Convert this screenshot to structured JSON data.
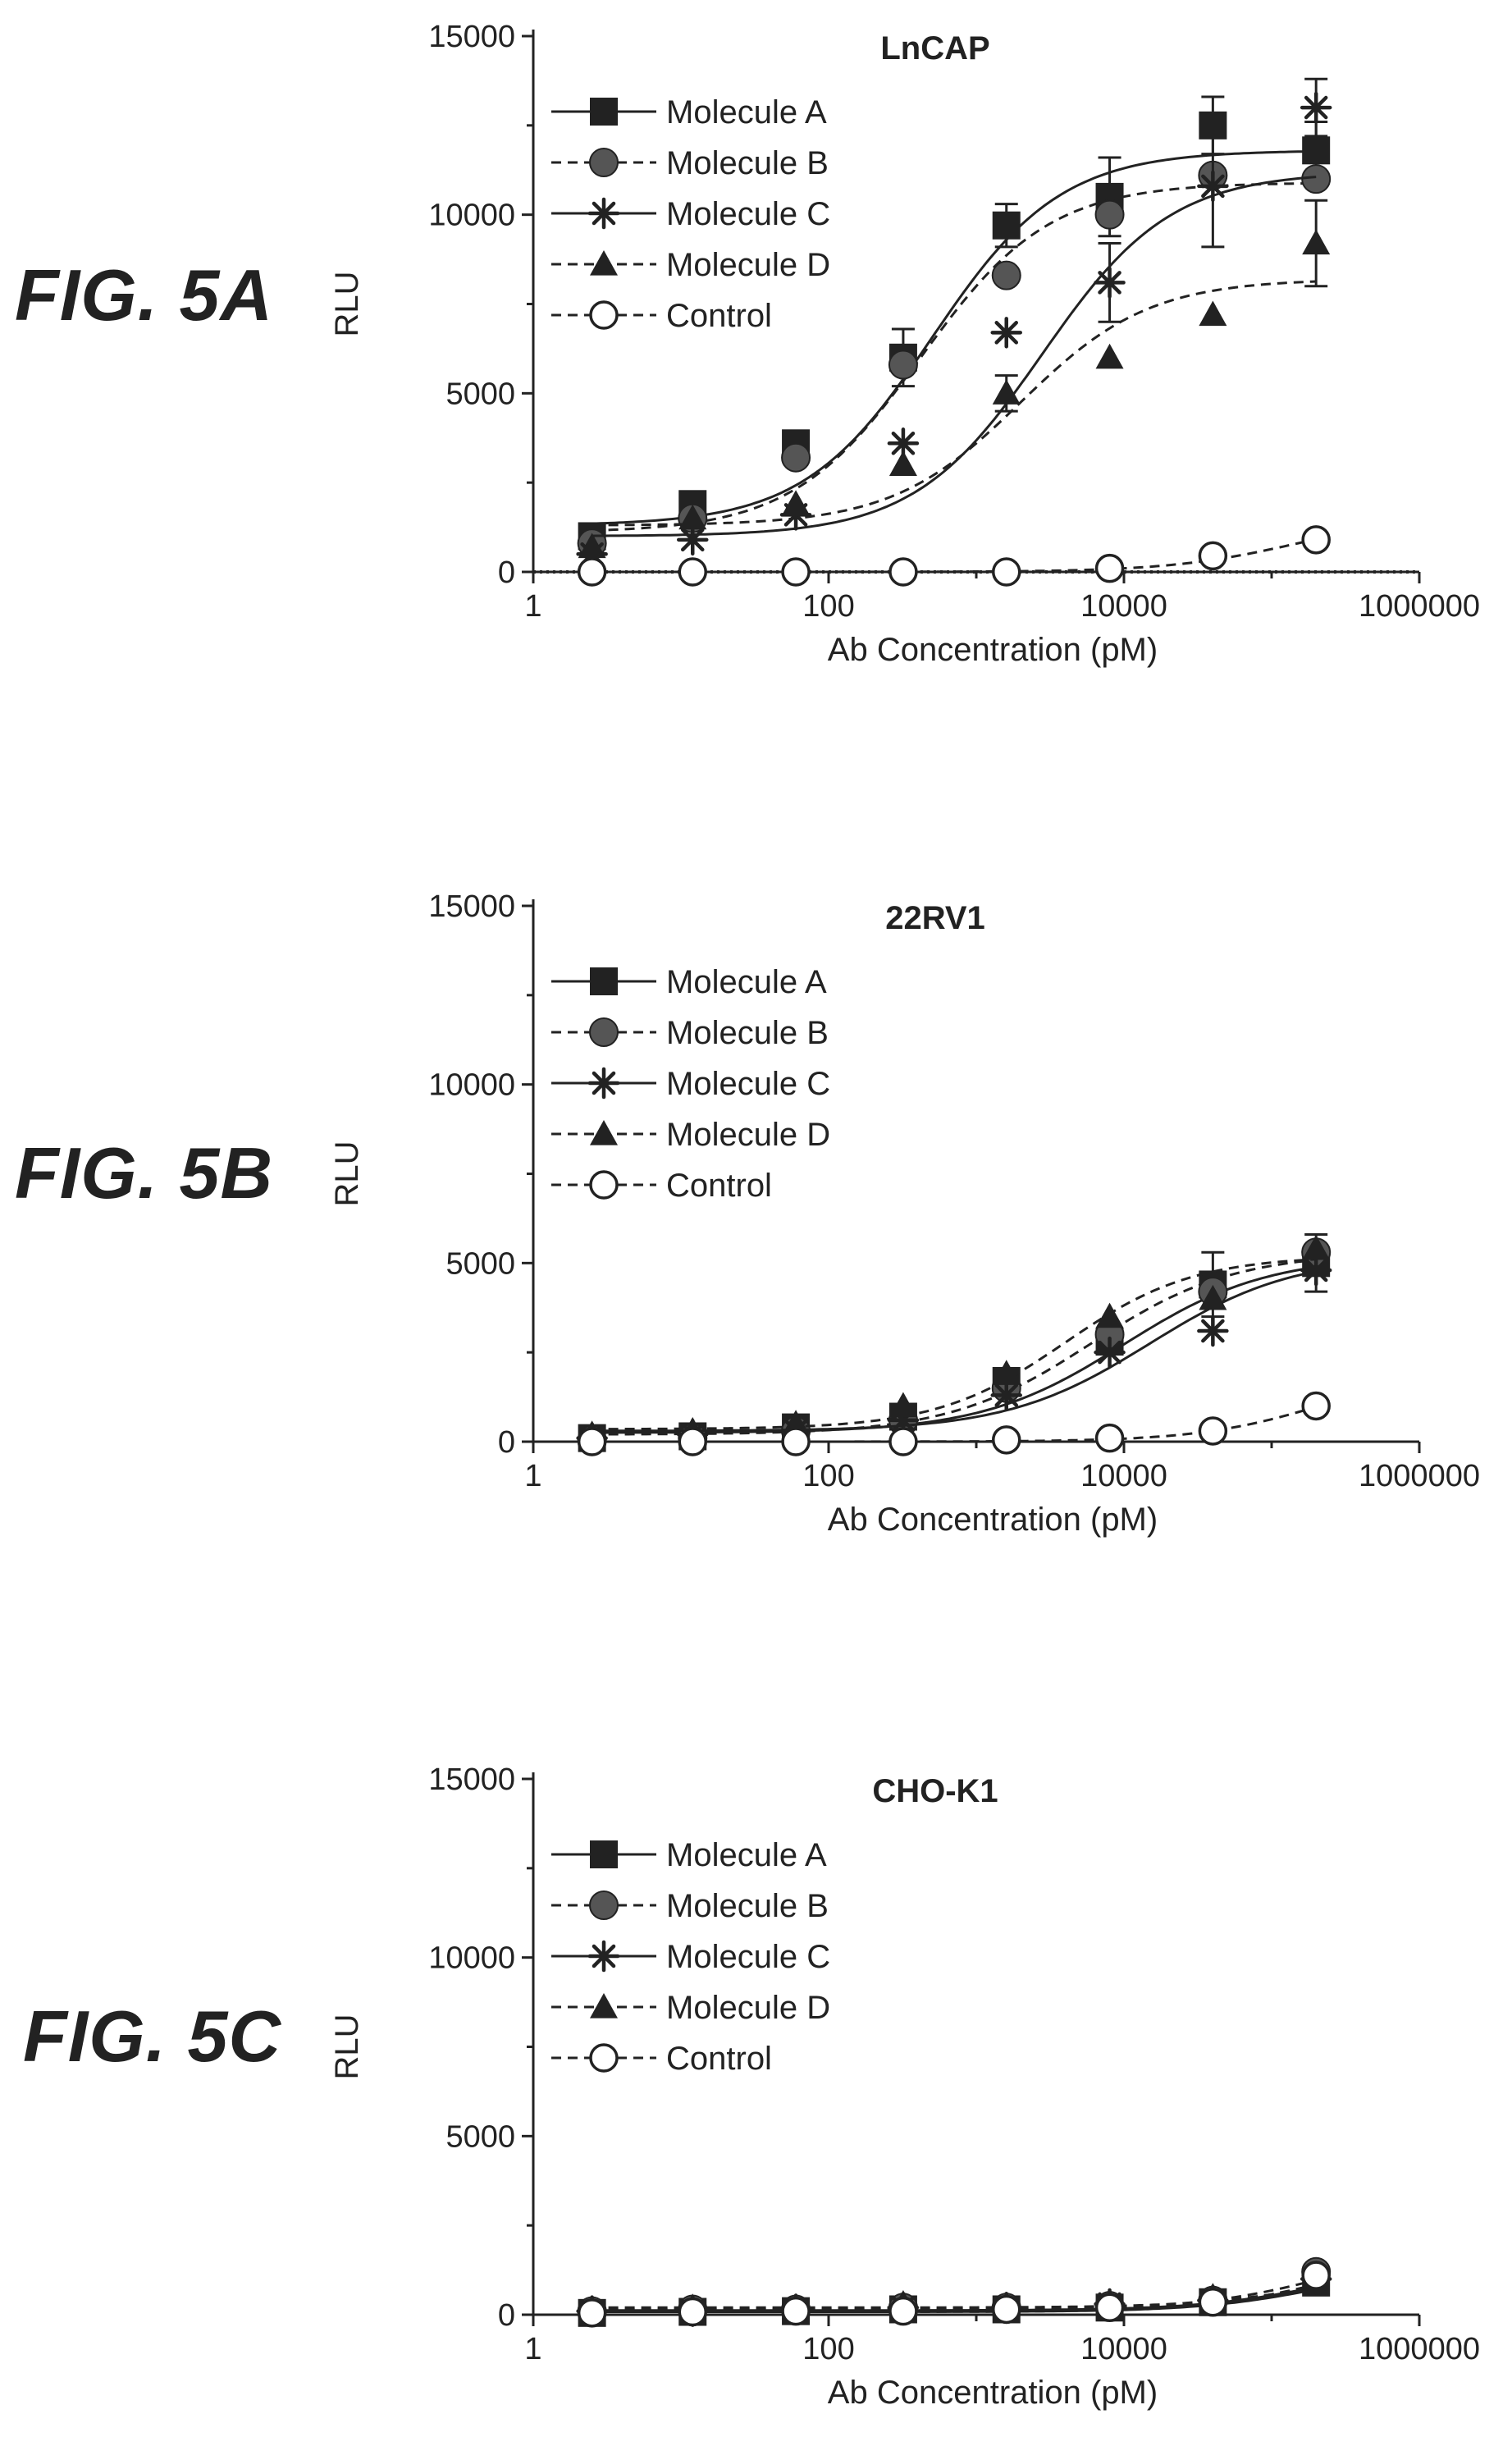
{
  "colors": {
    "ink": "#222222",
    "filled_marker": "#222222",
    "dotted_fill": "#555555",
    "open_marker_fill": "#ffffff"
  },
  "series_styles": [
    {
      "name": "Molecule A",
      "marker": "square",
      "line": "solid"
    },
    {
      "name": "Molecule B",
      "marker": "circle-filled",
      "line": "dashed"
    },
    {
      "name": "Molecule C",
      "marker": "asterisk",
      "line": "solid"
    },
    {
      "name": "Molecule D",
      "marker": "triangle",
      "line": "dashed"
    },
    {
      "name": "Control",
      "marker": "circle-open",
      "line": "dashed"
    }
  ],
  "chart_data": [
    {
      "type": "scatter",
      "figure_label": "FIG. 5A",
      "title": "LnCAP",
      "xlabel": "Ab Concentration (pM)",
      "ylabel": "RLU",
      "x_scale": "log",
      "xlim": [
        1,
        1000000
      ],
      "ylim": [
        0,
        15000
      ],
      "x_ticks": [
        1,
        100,
        10000,
        1000000
      ],
      "x_tick_labels": [
        "1",
        "100",
        "10000",
        "1000000"
      ],
      "y_ticks": [
        0,
        5000,
        10000,
        15000
      ],
      "y_tick_labels": [
        "0",
        "5000",
        "10000",
        "15000"
      ],
      "legend": "top-left",
      "baseline_dotted_at": 0,
      "series": [
        {
          "name": "Molecule A",
          "x": [
            2.5,
            12,
            60,
            320,
            1600,
            8000,
            40000,
            200000
          ],
          "y": [
            1000,
            1900,
            3600,
            6000,
            9700,
            10500,
            12500,
            11800
          ],
          "err": [
            0,
            0,
            0,
            800,
            600,
            1100,
            800,
            800
          ],
          "fit": {
            "bottom": 1300,
            "top": 11800,
            "ec50": 500,
            "hill": 1
          }
        },
        {
          "name": "Molecule B",
          "x": [
            2.5,
            12,
            60,
            320,
            1600,
            8000,
            40000,
            200000
          ],
          "y": [
            800,
            1500,
            3200,
            5800,
            8300,
            10000,
            11100,
            11000
          ],
          "err": [
            0,
            0,
            0,
            0,
            0,
            0,
            0,
            0
          ],
          "fit": {
            "bottom": 1100,
            "top": 10900,
            "ec50": 420,
            "hill": 1
          }
        },
        {
          "name": "Molecule C",
          "x": [
            2.5,
            12,
            60,
            320,
            1600,
            8000,
            40000,
            200000
          ],
          "y": [
            500,
            900,
            1600,
            3600,
            6700,
            8100,
            10800,
            13000
          ],
          "err": [
            0,
            0,
            0,
            0,
            0,
            1100,
            1700,
            800
          ],
          "fit": {
            "bottom": 1000,
            "top": 11200,
            "ec50": 2800,
            "hill": 1
          }
        },
        {
          "name": "Molecule D",
          "x": [
            2.5,
            12,
            60,
            320,
            1600,
            8000,
            40000,
            200000
          ],
          "y": [
            700,
            1500,
            1900,
            3000,
            5000,
            6000,
            7200,
            9200
          ],
          "err": [
            0,
            0,
            0,
            0,
            500,
            0,
            0,
            1200
          ],
          "fit": {
            "bottom": 1300,
            "top": 8200,
            "ec50": 2000,
            "hill": 1
          }
        },
        {
          "name": "Control",
          "x": [
            2.5,
            12,
            60,
            320,
            1600,
            8000,
            40000,
            200000
          ],
          "y": [
            0,
            0,
            0,
            0,
            0,
            100,
            450,
            900
          ],
          "err": [
            0,
            0,
            0,
            0,
            0,
            0,
            0,
            0
          ],
          "fit": {
            "bottom": 0,
            "top": 1600,
            "ec50": 150000,
            "hill": 1
          }
        }
      ]
    },
    {
      "type": "scatter",
      "figure_label": "FIG. 5B",
      "title": "22RV1",
      "xlabel": "Ab Concentration (pM)",
      "ylabel": "RLU",
      "x_scale": "log",
      "xlim": [
        1,
        1000000
      ],
      "ylim": [
        0,
        15000
      ],
      "x_ticks": [
        1,
        100,
        10000,
        1000000
      ],
      "x_tick_labels": [
        "1",
        "100",
        "10000",
        "1000000"
      ],
      "y_ticks": [
        0,
        5000,
        10000,
        15000
      ],
      "y_tick_labels": [
        "0",
        "5000",
        "10000",
        "15000"
      ],
      "legend": "top-left",
      "series": [
        {
          "name": "Molecule A",
          "x": [
            2.5,
            12,
            60,
            320,
            1600,
            8000,
            40000,
            200000
          ],
          "y": [
            100,
            150,
            400,
            700,
            1700,
            2800,
            4400,
            5000
          ],
          "err": [
            0,
            0,
            0,
            0,
            0,
            0,
            900,
            800
          ],
          "fit": {
            "bottom": 250,
            "top": 5200,
            "ec50": 10000,
            "hill": 0.9
          }
        },
        {
          "name": "Molecule B",
          "x": [
            2.5,
            12,
            60,
            320,
            1600,
            8000,
            40000,
            200000
          ],
          "y": [
            50,
            100,
            300,
            600,
            1500,
            3000,
            4200,
            5300
          ],
          "err": [
            0,
            0,
            0,
            0,
            0,
            0,
            0,
            0
          ],
          "fit": {
            "bottom": 200,
            "top": 5300,
            "ec50": 6000,
            "hill": 0.9
          }
        },
        {
          "name": "Molecule C",
          "x": [
            2.5,
            12,
            60,
            320,
            1600,
            8000,
            40000,
            200000
          ],
          "y": [
            100,
            200,
            300,
            600,
            1300,
            2500,
            3100,
            4800
          ],
          "err": [
            0,
            0,
            0,
            0,
            0,
            0,
            0,
            0
          ],
          "fit": {
            "bottom": 300,
            "top": 5200,
            "ec50": 15000,
            "hill": 0.9
          }
        },
        {
          "name": "Molecule D",
          "x": [
            2.5,
            12,
            60,
            320,
            1600,
            8000,
            40000,
            200000
          ],
          "y": [
            200,
            300,
            500,
            1000,
            1900,
            3500,
            4000,
            5400
          ],
          "err": [
            0,
            0,
            0,
            0,
            0,
            0,
            0,
            0
          ],
          "fit": {
            "bottom": 350,
            "top": 5200,
            "ec50": 4000,
            "hill": 1
          }
        },
        {
          "name": "Control",
          "x": [
            2.5,
            12,
            60,
            320,
            1600,
            8000,
            40000,
            200000
          ],
          "y": [
            0,
            0,
            0,
            0,
            50,
            100,
            300,
            1000
          ],
          "err": [
            0,
            0,
            0,
            0,
            0,
            0,
            0,
            0
          ],
          "fit": {
            "bottom": 0,
            "top": 2200,
            "ec50": 250000,
            "hill": 1
          }
        }
      ]
    },
    {
      "type": "scatter",
      "figure_label": "FIG. 5C",
      "title": "CHO-K1",
      "xlabel": "Ab Concentration (pM)",
      "ylabel": "RLU",
      "x_scale": "log",
      "xlim": [
        1,
        1000000
      ],
      "ylim": [
        0,
        15000
      ],
      "x_ticks": [
        1,
        100,
        10000,
        1000000
      ],
      "x_tick_labels": [
        "1",
        "100",
        "10000",
        "1000000"
      ],
      "y_ticks": [
        0,
        5000,
        10000,
        15000
      ],
      "y_tick_labels": [
        "0",
        "5000",
        "10000",
        "15000"
      ],
      "legend": "top-left",
      "series": [
        {
          "name": "Molecule A",
          "x": [
            2.5,
            12,
            60,
            320,
            1600,
            8000,
            40000,
            200000
          ],
          "y": [
            50,
            80,
            100,
            150,
            150,
            200,
            350,
            900
          ],
          "err": [
            0,
            0,
            0,
            0,
            0,
            0,
            0,
            0
          ],
          "fit": {
            "bottom": 80,
            "top": 1500,
            "ec50": 250000,
            "hill": 1
          }
        },
        {
          "name": "Molecule B",
          "x": [
            2.5,
            12,
            60,
            320,
            1600,
            8000,
            40000,
            200000
          ],
          "y": [
            100,
            150,
            150,
            200,
            200,
            250,
            400,
            1200
          ],
          "err": [
            0,
            0,
            0,
            0,
            0,
            0,
            0,
            0
          ],
          "fit": {
            "bottom": 150,
            "top": 2000,
            "ec50": 250000,
            "hill": 1
          }
        },
        {
          "name": "Molecule C",
          "x": [
            2.5,
            12,
            60,
            320,
            1600,
            8000,
            40000,
            200000
          ],
          "y": [
            100,
            100,
            150,
            200,
            200,
            300,
            400,
            1000
          ],
          "err": [
            0,
            0,
            0,
            0,
            0,
            0,
            0,
            0
          ],
          "fit": {
            "bottom": 120,
            "top": 1600,
            "ec50": 250000,
            "hill": 1
          }
        },
        {
          "name": "Molecule D",
          "x": [
            2.5,
            12,
            60,
            320,
            1600,
            8000,
            40000,
            200000
          ],
          "y": [
            150,
            200,
            200,
            300,
            250,
            300,
            500,
            1000
          ],
          "err": [
            0,
            0,
            0,
            0,
            0,
            0,
            0,
            0
          ],
          "fit": {
            "bottom": 200,
            "top": 1500,
            "ec50": 250000,
            "hill": 1
          }
        },
        {
          "name": "Control",
          "x": [
            2.5,
            12,
            60,
            320,
            1600,
            8000,
            40000,
            200000
          ],
          "y": [
            50,
            80,
            100,
            100,
            150,
            200,
            350,
            1100
          ],
          "err": [
            0,
            0,
            0,
            0,
            0,
            0,
            0,
            0
          ],
          "fit": {
            "bottom": 80,
            "top": 1800,
            "ec50": 250000,
            "hill": 1
          }
        }
      ]
    }
  ]
}
